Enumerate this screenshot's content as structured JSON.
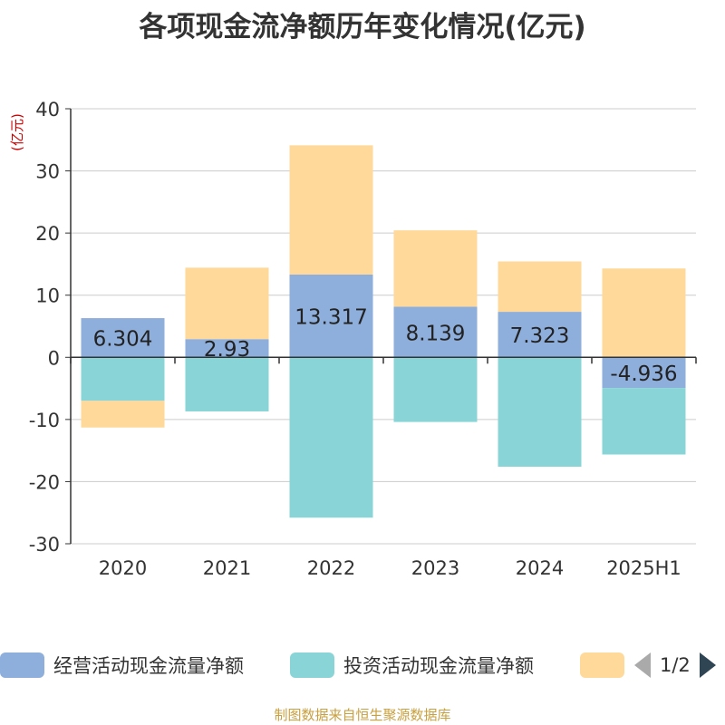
{
  "title": "各项现金流净额历年变化情况(亿元)",
  "source": "制图数据来自恒生聚源数据库",
  "legend": {
    "items": [
      {
        "label": "经营活动现金流量净额",
        "color": "#8eaedb"
      },
      {
        "label": "投资活动现金流量净额",
        "color": "#88d4d6"
      },
      {
        "label": "",
        "color": "#ffd99a"
      }
    ],
    "page": "1/2"
  },
  "chart_data": {
    "type": "bar",
    "stacked": true,
    "ylabel": "(亿元)",
    "ylim": [
      -30,
      40
    ],
    "yticks": [
      40,
      30,
      20,
      10,
      0,
      -10,
      -20,
      -30
    ],
    "grid": true,
    "legend_position": "bottom",
    "categories": [
      "2020",
      "2021",
      "2022",
      "2023",
      "2024",
      "2025H1"
    ],
    "series": [
      {
        "name": "经营活动现金流量净额",
        "color": "#8eaedb",
        "values": [
          6.304,
          2.93,
          13.317,
          8.139,
          7.323,
          -4.936
        ],
        "labels": [
          "6.304",
          "2.93",
          "13.317",
          "8.139",
          "7.323",
          "-4.936"
        ]
      },
      {
        "name": "投资活动现金流量净额",
        "color": "#88d4d6",
        "values": [
          -7.0,
          -8.7,
          -25.8,
          -10.4,
          -17.6,
          -10.7
        ]
      },
      {
        "color": "#ffd99a",
        "values": [
          -4.3,
          11.5,
          20.8,
          12.3,
          8.1,
          14.3
        ]
      }
    ]
  }
}
